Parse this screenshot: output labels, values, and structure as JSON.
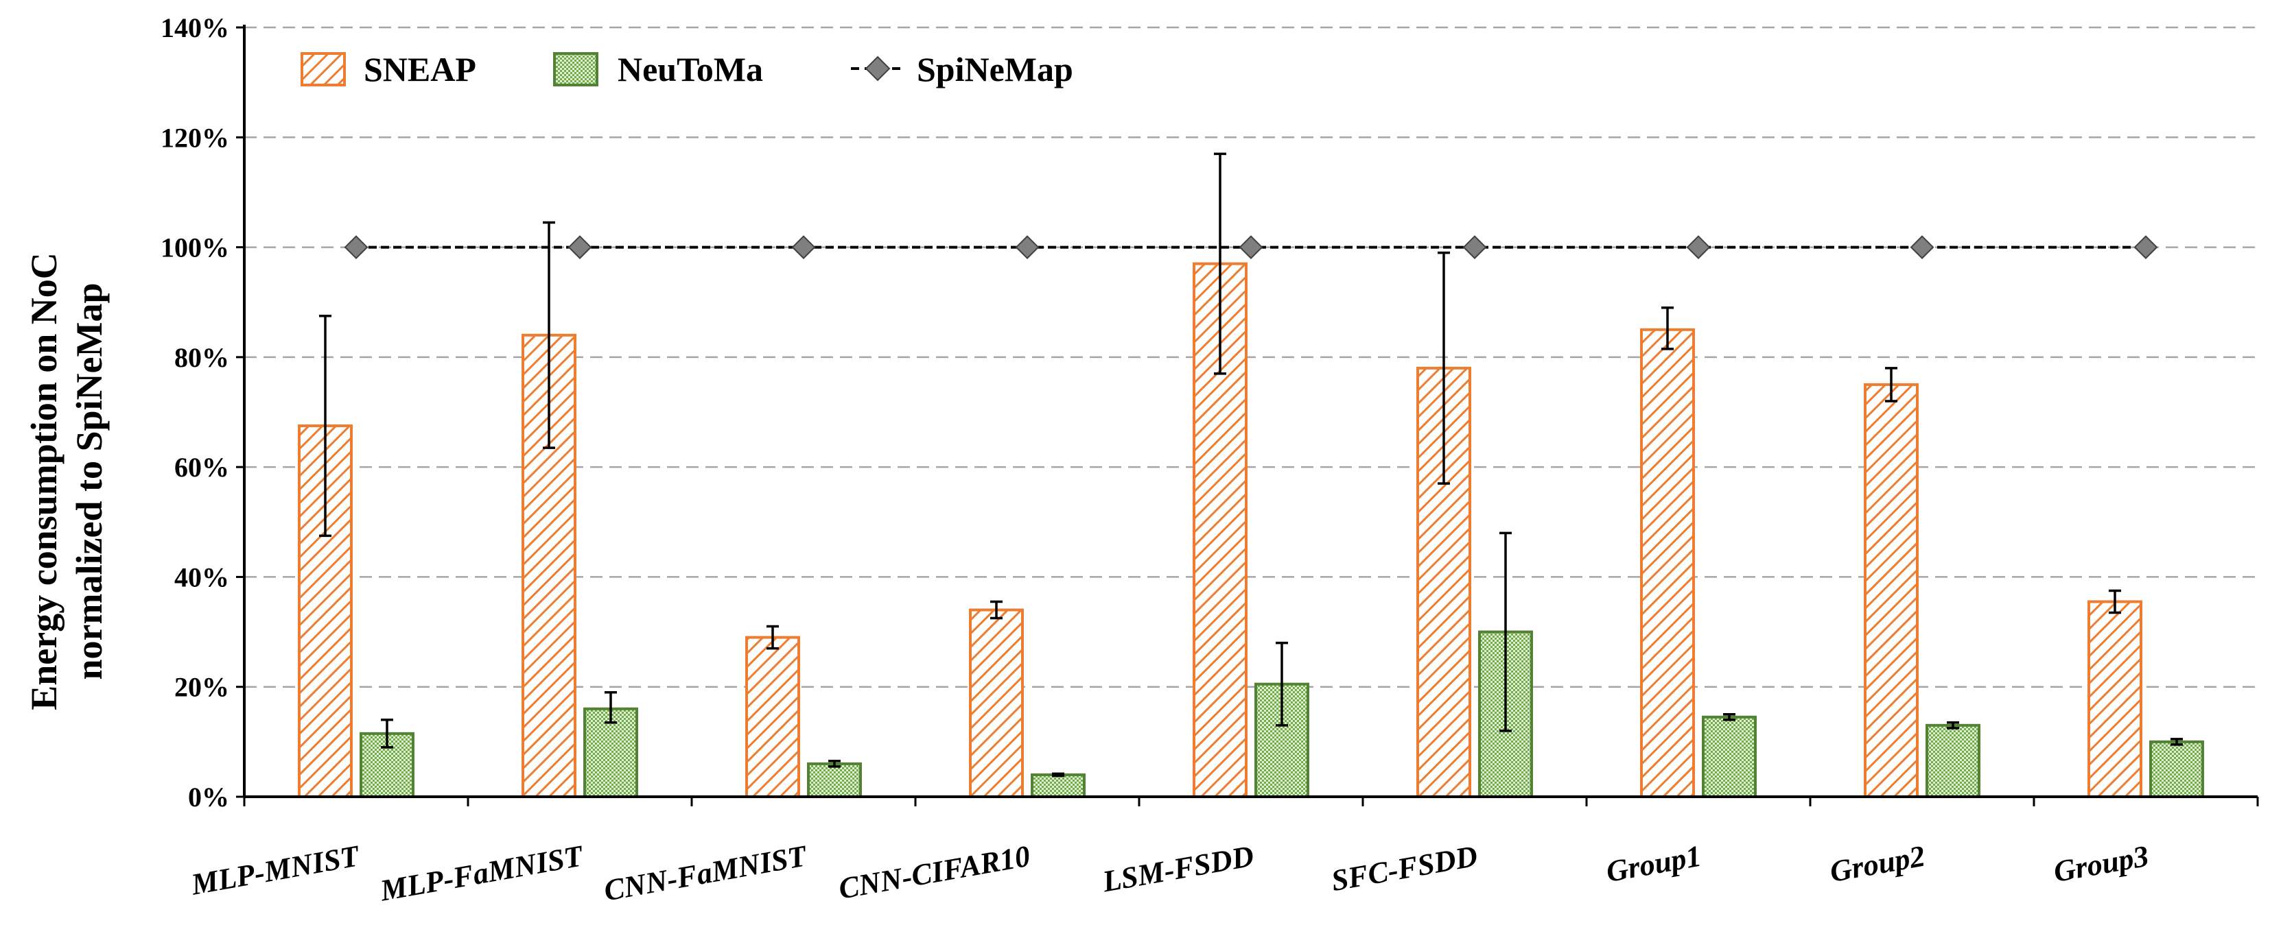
{
  "chart_data": {
    "type": "bar",
    "title": "",
    "ylabel_line1": "Energy consumption on NoC",
    "ylabel_line2": "normalized to SpiNeMap",
    "xlabel": "",
    "ylim": [
      0,
      140
    ],
    "yticks": [
      0,
      20,
      40,
      60,
      80,
      100,
      120,
      140
    ],
    "ytick_labels": [
      "0%",
      "20%",
      "40%",
      "60%",
      "80%",
      "100%",
      "120%",
      "140%"
    ],
    "grid": true,
    "legend_position": "top-left",
    "categories": [
      "MLP-MNIST",
      "MLP-FaMNIST",
      "CNN-FaMNIST",
      "CNN-CIFAR10",
      "LSM-FSDD",
      "SFC-FSDD",
      "Group1",
      "Group2",
      "Group3"
    ],
    "series": [
      {
        "name": "SNEAP",
        "kind": "bar",
        "color": "#ED7D31",
        "pattern": "diagonal-hatch",
        "values": [
          67.5,
          84,
          29,
          34,
          97,
          78,
          85,
          75,
          35.5
        ],
        "error_low": [
          47.5,
          63.5,
          27,
          32.5,
          77,
          57,
          81.5,
          72,
          33.5
        ],
        "error_high": [
          87.5,
          104.5,
          31,
          35.5,
          117,
          99,
          89,
          78,
          37.5
        ]
      },
      {
        "name": "NeuToMa",
        "kind": "bar",
        "color": "#548235",
        "fill": "#A9D18E",
        "pattern": "checker",
        "values": [
          11.5,
          16,
          6,
          4,
          20.5,
          30,
          14.5,
          13,
          10
        ],
        "error_low": [
          9,
          13.5,
          5.5,
          3.8,
          13,
          12,
          14,
          12.5,
          9.5
        ],
        "error_high": [
          14,
          19,
          6.5,
          4.2,
          28,
          48,
          15,
          13.5,
          10.5
        ]
      },
      {
        "name": "SpiNeMap",
        "kind": "line",
        "color": "#000000",
        "marker": "diamond",
        "marker_color": "#7F7F7F",
        "values": [
          100,
          100,
          100,
          100,
          100,
          100,
          100,
          100,
          100
        ]
      }
    ]
  }
}
